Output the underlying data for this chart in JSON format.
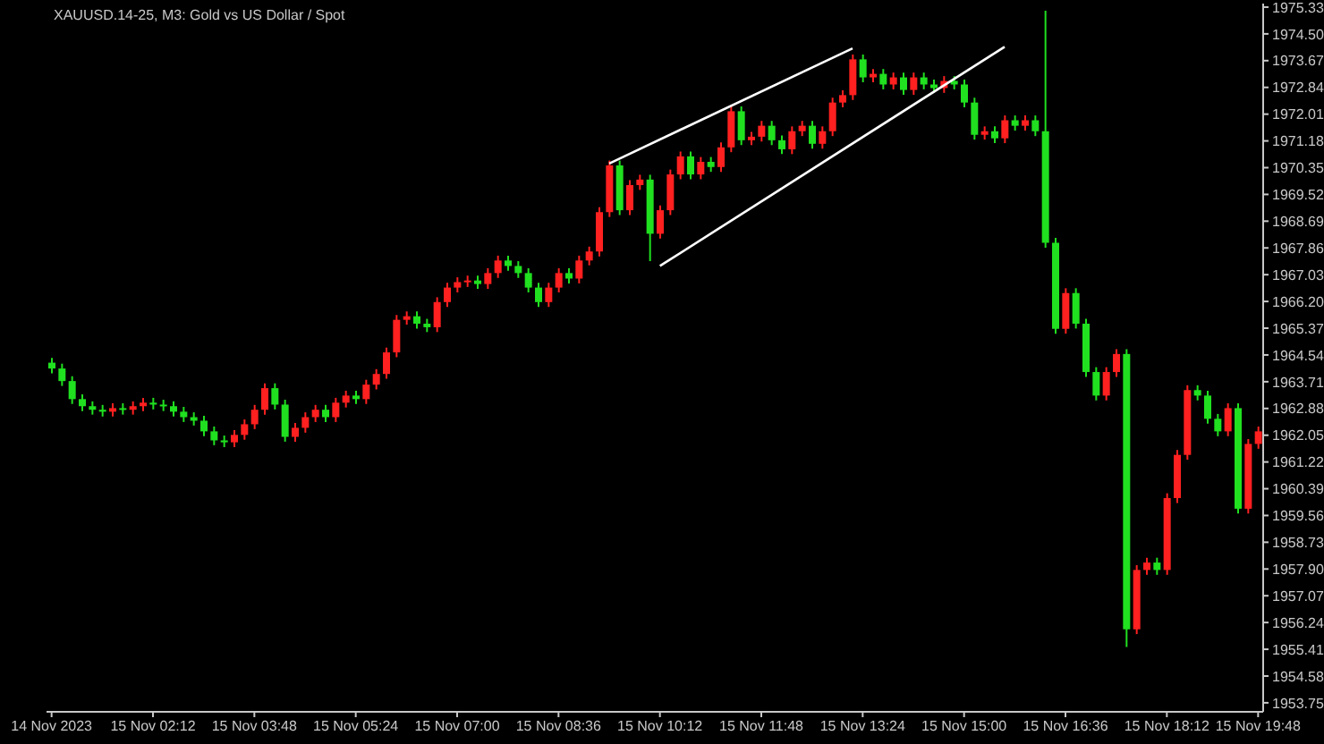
{
  "chart_data": {
    "type": "candlestick",
    "title": "XAUUSD.14-25, M3: Gold vs US Dollar / Spot",
    "categories": [
      "14 Nov 2023",
      null,
      null,
      null,
      null,
      null,
      null,
      null,
      null,
      null,
      "15 Nov 02:12",
      null,
      null,
      null,
      null,
      null,
      null,
      null,
      null,
      null,
      "15 Nov 03:48",
      null,
      null,
      null,
      null,
      null,
      null,
      null,
      null,
      null,
      "15 Nov 05:24",
      null,
      null,
      null,
      null,
      null,
      null,
      null,
      null,
      null,
      "15 Nov 07:00",
      null,
      null,
      null,
      null,
      null,
      null,
      null,
      null,
      null,
      "15 Nov 08:36",
      null,
      null,
      null,
      null,
      null,
      null,
      null,
      null,
      null,
      "15 Nov 10:12",
      null,
      null,
      null,
      null,
      null,
      null,
      null,
      null,
      null,
      "15 Nov 11:48",
      null,
      null,
      null,
      null,
      null,
      null,
      null,
      null,
      null,
      "15 Nov 13:24",
      null,
      null,
      null,
      null,
      null,
      null,
      null,
      null,
      null,
      "15 Nov 15:00",
      null,
      null,
      null,
      null,
      null,
      null,
      null,
      null,
      null,
      "15 Nov 16:36",
      null,
      null,
      null,
      null,
      null,
      null,
      null,
      null,
      null,
      "15 Nov 18:12",
      null,
      null,
      null,
      null,
      null,
      null,
      null,
      null,
      "15 Nov 19:48"
    ],
    "ohlc": [
      [
        1964.3,
        1964.45,
        1963.97,
        1964.12
      ],
      [
        1964.12,
        1964.27,
        1963.58,
        1963.73
      ],
      [
        1963.73,
        1963.88,
        1963.02,
        1963.17
      ],
      [
        1963.17,
        1963.32,
        1962.8,
        1962.95
      ],
      [
        1962.95,
        1963.1,
        1962.69,
        1962.84
      ],
      [
        1962.84,
        1962.99,
        1962.63,
        1962.78
      ],
      [
        1962.78,
        1963.04,
        1962.63,
        1962.89
      ],
      [
        1962.89,
        1963.04,
        1962.69,
        1962.84
      ],
      [
        1962.84,
        1963.1,
        1962.69,
        1962.95
      ],
      [
        1962.95,
        1963.21,
        1962.8,
        1963.06
      ],
      [
        1963.06,
        1963.21,
        1962.85,
        1963.0
      ],
      [
        1963.0,
        1963.15,
        1962.8,
        1962.95
      ],
      [
        1962.95,
        1963.1,
        1962.63,
        1962.78
      ],
      [
        1962.78,
        1962.93,
        1962.46,
        1962.61
      ],
      [
        1962.61,
        1962.76,
        1962.35,
        1962.5
      ],
      [
        1962.5,
        1962.65,
        1962.02,
        1962.17
      ],
      [
        1962.17,
        1962.32,
        1961.74,
        1961.89
      ],
      [
        1961.89,
        1962.04,
        1961.68,
        1961.83
      ],
      [
        1961.83,
        1962.21,
        1961.68,
        1962.06
      ],
      [
        1962.06,
        1962.54,
        1961.91,
        1962.39
      ],
      [
        1962.39,
        1962.99,
        1962.24,
        1962.84
      ],
      [
        1962.84,
        1963.66,
        1962.69,
        1963.51
      ],
      [
        1963.51,
        1963.66,
        1962.85,
        1963.0
      ],
      [
        1963.0,
        1963.15,
        1961.85,
        1962.0
      ],
      [
        1962.0,
        1962.43,
        1961.85,
        1962.28
      ],
      [
        1962.28,
        1962.76,
        1962.13,
        1962.61
      ],
      [
        1962.61,
        1962.99,
        1962.46,
        1962.84
      ],
      [
        1962.84,
        1962.99,
        1962.46,
        1962.61
      ],
      [
        1962.61,
        1963.21,
        1962.46,
        1963.06
      ],
      [
        1963.06,
        1963.43,
        1962.91,
        1963.28
      ],
      [
        1963.28,
        1963.43,
        1963.02,
        1963.17
      ],
      [
        1963.17,
        1963.77,
        1963.02,
        1963.62
      ],
      [
        1963.62,
        1964.1,
        1963.47,
        1963.95
      ],
      [
        1963.95,
        1964.77,
        1963.8,
        1964.62
      ],
      [
        1964.62,
        1965.78,
        1964.47,
        1965.63
      ],
      [
        1965.63,
        1965.89,
        1965.48,
        1965.74
      ],
      [
        1965.74,
        1965.89,
        1965.36,
        1965.51
      ],
      [
        1965.51,
        1965.66,
        1965.25,
        1965.4
      ],
      [
        1965.4,
        1966.33,
        1965.25,
        1966.18
      ],
      [
        1966.18,
        1966.78,
        1966.03,
        1966.63
      ],
      [
        1966.63,
        1966.95,
        1966.48,
        1966.8
      ],
      [
        1966.8,
        1967.0,
        1966.65,
        1966.85
      ],
      [
        1966.85,
        1967.0,
        1966.59,
        1966.74
      ],
      [
        1966.74,
        1967.23,
        1966.59,
        1967.08
      ],
      [
        1967.08,
        1967.62,
        1966.93,
        1967.47
      ],
      [
        1967.47,
        1967.62,
        1967.15,
        1967.3
      ],
      [
        1967.3,
        1967.45,
        1966.93,
        1967.08
      ],
      [
        1967.08,
        1967.23,
        1966.48,
        1966.63
      ],
      [
        1966.63,
        1966.78,
        1966.03,
        1966.18
      ],
      [
        1966.18,
        1966.78,
        1966.03,
        1966.63
      ],
      [
        1966.63,
        1967.23,
        1966.48,
        1967.08
      ],
      [
        1967.08,
        1967.23,
        1966.76,
        1966.91
      ],
      [
        1966.91,
        1967.62,
        1966.76,
        1967.47
      ],
      [
        1967.47,
        1967.9,
        1967.32,
        1967.75
      ],
      [
        1967.75,
        1969.12,
        1967.6,
        1968.97
      ],
      [
        1968.97,
        1970.57,
        1968.82,
        1970.42
      ],
      [
        1970.42,
        1970.57,
        1968.88,
        1969.03
      ],
      [
        1969.03,
        1969.96,
        1968.88,
        1969.81
      ],
      [
        1969.81,
        1970.13,
        1969.66,
        1969.98
      ],
      [
        1969.98,
        1970.13,
        1967.45,
        1968.3
      ],
      [
        1968.3,
        1969.18,
        1968.15,
        1969.03
      ],
      [
        1969.03,
        1970.29,
        1968.88,
        1970.14
      ],
      [
        1970.14,
        1970.85,
        1969.99,
        1970.7
      ],
      [
        1970.7,
        1970.85,
        1969.99,
        1970.14
      ],
      [
        1970.14,
        1970.68,
        1969.99,
        1970.53
      ],
      [
        1970.53,
        1970.68,
        1970.22,
        1970.37
      ],
      [
        1970.37,
        1971.13,
        1970.22,
        1970.98
      ],
      [
        1970.98,
        1972.25,
        1970.83,
        1972.1
      ],
      [
        1972.1,
        1972.25,
        1971.05,
        1971.2
      ],
      [
        1971.2,
        1971.46,
        1971.05,
        1971.31
      ],
      [
        1971.31,
        1971.8,
        1971.16,
        1971.65
      ],
      [
        1971.65,
        1971.8,
        1971.05,
        1971.2
      ],
      [
        1971.2,
        1971.35,
        1970.77,
        1970.92
      ],
      [
        1970.92,
        1971.63,
        1970.77,
        1971.48
      ],
      [
        1971.48,
        1971.8,
        1971.33,
        1971.65
      ],
      [
        1971.65,
        1971.8,
        1970.94,
        1971.09
      ],
      [
        1971.09,
        1971.63,
        1970.94,
        1971.48
      ],
      [
        1971.48,
        1972.52,
        1971.33,
        1972.37
      ],
      [
        1972.37,
        1972.75,
        1972.22,
        1972.6
      ],
      [
        1972.6,
        1973.86,
        1972.45,
        1973.71
      ],
      [
        1973.71,
        1973.86,
        1973.0,
        1973.15
      ],
      [
        1973.15,
        1973.41,
        1973.0,
        1973.26
      ],
      [
        1973.26,
        1973.41,
        1972.78,
        1972.93
      ],
      [
        1972.93,
        1973.3,
        1972.78,
        1973.15
      ],
      [
        1973.15,
        1973.3,
        1972.61,
        1972.76
      ],
      [
        1972.76,
        1973.3,
        1972.61,
        1973.15
      ],
      [
        1973.15,
        1973.3,
        1972.78,
        1972.93
      ],
      [
        1972.93,
        1973.08,
        1972.67,
        1972.82
      ],
      [
        1972.82,
        1973.19,
        1972.67,
        1973.04
      ],
      [
        1973.04,
        1973.19,
        1972.78,
        1972.93
      ],
      [
        1972.93,
        1973.08,
        1972.22,
        1972.37
      ],
      [
        1972.37,
        1972.52,
        1971.22,
        1971.37
      ],
      [
        1971.37,
        1971.63,
        1971.22,
        1971.48
      ],
      [
        1971.48,
        1971.63,
        1971.11,
        1971.26
      ],
      [
        1971.26,
        1971.97,
        1971.11,
        1971.82
      ],
      [
        1971.82,
        1971.97,
        1971.5,
        1971.65
      ],
      [
        1971.65,
        1971.97,
        1971.5,
        1971.82
      ],
      [
        1971.82,
        1971.97,
        1971.33,
        1971.48
      ],
      [
        1971.48,
        1975.22,
        1967.87,
        1968.02
      ],
      [
        1968.02,
        1968.17,
        1965.2,
        1965.35
      ],
      [
        1965.35,
        1966.61,
        1965.2,
        1966.46
      ],
      [
        1966.46,
        1966.61,
        1965.36,
        1965.51
      ],
      [
        1965.51,
        1965.66,
        1963.86,
        1964.01
      ],
      [
        1964.01,
        1964.16,
        1963.13,
        1963.28
      ],
      [
        1963.28,
        1964.16,
        1963.13,
        1964.01
      ],
      [
        1964.01,
        1964.72,
        1963.86,
        1964.57
      ],
      [
        1964.57,
        1964.72,
        1955.48,
        1956.03
      ],
      [
        1956.03,
        1958.02,
        1955.88,
        1957.87
      ],
      [
        1957.87,
        1958.25,
        1957.72,
        1958.1
      ],
      [
        1958.1,
        1958.25,
        1957.72,
        1957.87
      ],
      [
        1957.87,
        1960.25,
        1957.72,
        1960.1
      ],
      [
        1960.1,
        1961.59,
        1959.95,
        1961.44
      ],
      [
        1961.44,
        1963.6,
        1961.29,
        1963.45
      ],
      [
        1963.45,
        1963.6,
        1963.13,
        1963.28
      ],
      [
        1963.28,
        1963.43,
        1962.41,
        1962.56
      ],
      [
        1962.56,
        1962.71,
        1962.02,
        1962.17
      ],
      [
        1962.17,
        1963.04,
        1962.02,
        1962.89
      ],
      [
        1962.89,
        1963.04,
        1959.62,
        1959.77
      ],
      [
        1959.77,
        1961.93,
        1959.62,
        1961.78
      ],
      [
        1961.78,
        1962.32,
        1961.63,
        1962.17
      ]
    ],
    "colors": [
      "#20e020",
      "#20e020",
      "#20e020",
      "#20e020",
      "#20e020",
      "#20e020",
      "#ff2020",
      "#20e020",
      "#ff2020",
      "#ff2020",
      "#20e020",
      "#20e020",
      "#20e020",
      "#20e020",
      "#20e020",
      "#20e020",
      "#20e020",
      "#20e020",
      "#ff2020",
      "#ff2020",
      "#ff2020",
      "#ff2020",
      "#20e020",
      "#20e020",
      "#ff2020",
      "#ff2020",
      "#ff2020",
      "#20e020",
      "#ff2020",
      "#ff2020",
      "#20e020",
      "#ff2020",
      "#ff2020",
      "#ff2020",
      "#ff2020",
      "#ff2020",
      "#20e020",
      "#20e020",
      "#ff2020",
      "#ff2020",
      "#ff2020",
      "#ff2020",
      "#20e020",
      "#ff2020",
      "#ff2020",
      "#20e020",
      "#20e020",
      "#20e020",
      "#20e020",
      "#ff2020",
      "#ff2020",
      "#20e020",
      "#ff2020",
      "#ff2020",
      "#ff2020",
      "#ff2020",
      "#20e020",
      "#ff2020",
      "#ff2020",
      "#20e020",
      "#ff2020",
      "#ff2020",
      "#ff2020",
      "#20e020",
      "#ff2020",
      "#20e020",
      "#ff2020",
      "#ff2020",
      "#20e020",
      "#ff2020",
      "#ff2020",
      "#20e020",
      "#20e020",
      "#ff2020",
      "#ff2020",
      "#20e020",
      "#ff2020",
      "#ff2020",
      "#ff2020",
      "#ff2020",
      "#20e020",
      "#ff2020",
      "#20e020",
      "#ff2020",
      "#20e020",
      "#ff2020",
      "#20e020",
      "#20e020",
      "#ff2020",
      "#20e020",
      "#20e020",
      "#20e020",
      "#ff2020",
      "#20e020",
      "#ff2020",
      "#20e020",
      "#ff2020",
      "#20e020",
      "#20e020",
      "#20e020",
      "#ff2020",
      "#20e020",
      "#20e020",
      "#20e020",
      "#ff2020",
      "#ff2020",
      "#20e020",
      "#ff2020",
      "#ff2020",
      "#20e020",
      "#ff2020",
      "#ff2020",
      "#ff2020",
      "#20e020",
      "#20e020",
      "#20e020",
      "#ff2020",
      "#20e020",
      "#ff2020",
      "#ff2020"
    ],
    "series": [
      {
        "type": "line",
        "color": "#ffffff",
        "values": [
          null,
          null,
          null,
          null,
          null,
          null,
          null,
          null,
          null,
          null,
          null,
          null,
          null,
          null,
          null,
          null,
          null,
          null,
          null,
          null,
          null,
          null,
          null,
          null,
          null,
          null,
          null,
          null,
          null,
          null,
          null,
          null,
          null,
          null,
          null,
          null,
          null,
          null,
          null,
          null,
          null,
          null,
          null,
          null,
          null,
          null,
          null,
          null,
          null,
          null,
          null,
          null,
          null,
          null,
          null,
          1970.48,
          null,
          null,
          null,
          null,
          null,
          null,
          null,
          null,
          null,
          null,
          null,
          null,
          null,
          null,
          null,
          null,
          null,
          null,
          null,
          null,
          null,
          null,
          null,
          1974.05,
          null,
          null,
          null,
          null,
          null,
          null,
          null,
          null,
          null,
          null,
          null,
          null,
          null,
          null,
          null,
          null,
          null,
          null,
          null,
          null,
          null,
          null,
          null,
          null,
          null,
          null,
          null,
          null,
          null,
          null,
          null,
          null,
          null,
          null,
          null,
          null,
          null,
          null,
          null,
          null
        ]
      },
      {
        "type": "line",
        "color": "#ffffff",
        "values": [
          null,
          null,
          null,
          null,
          null,
          null,
          null,
          null,
          null,
          null,
          null,
          null,
          null,
          null,
          null,
          null,
          null,
          null,
          null,
          null,
          null,
          null,
          null,
          null,
          null,
          null,
          null,
          null,
          null,
          null,
          null,
          null,
          null,
          null,
          null,
          null,
          null,
          null,
          null,
          null,
          null,
          null,
          null,
          null,
          null,
          null,
          null,
          null,
          null,
          null,
          null,
          null,
          null,
          null,
          null,
          null,
          null,
          null,
          null,
          null,
          1967.3,
          null,
          null,
          null,
          null,
          null,
          null,
          null,
          null,
          null,
          null,
          null,
          null,
          null,
          null,
          null,
          null,
          null,
          null,
          null,
          null,
          null,
          null,
          null,
          null,
          null,
          null,
          null,
          null,
          null,
          null,
          null,
          null,
          null,
          1974.1,
          null,
          null,
          null,
          null,
          null,
          null,
          null,
          null,
          null,
          null,
          null,
          null,
          null,
          null,
          null,
          null,
          null,
          null,
          null,
          null,
          null,
          null,
          null,
          null,
          null
        ]
      }
    ],
    "ylim": [
      1953.47,
      1975.44
    ],
    "yticks": [
      1953.75,
      1954.58,
      1955.41,
      1956.24,
      1957.07,
      {
        "value": 1957.9,
        "label": "1957.90"
      },
      1958.73,
      1959.56,
      1960.39,
      1961.22,
      1962.05,
      1962.88,
      1963.71,
      1964.54,
      1965.37,
      {
        "value": 1966.2,
        "label": "1966.20"
      },
      1967.03,
      1967.86,
      1968.69,
      1969.52,
      1970.35,
      1971.18,
      1972.01,
      1972.84,
      1973.67,
      {
        "value": 1974.5,
        "label": "1974.50"
      },
      1975.33
    ]
  }
}
